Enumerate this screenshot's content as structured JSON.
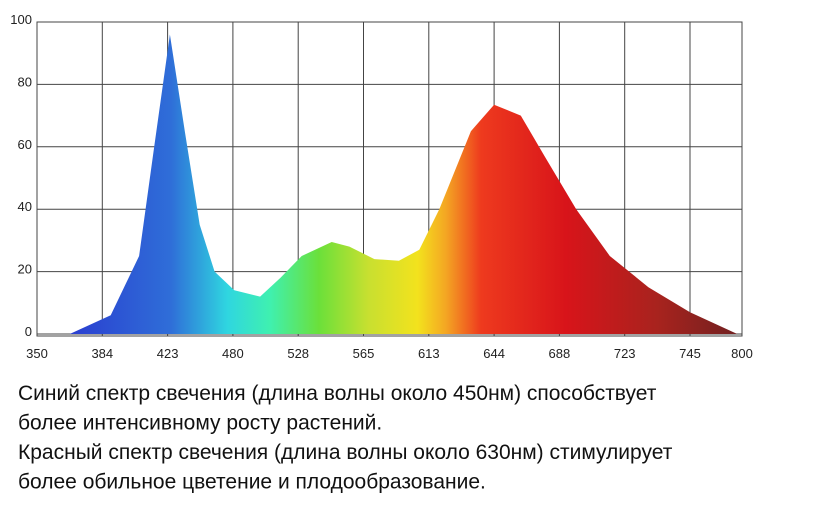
{
  "chart_data": {
    "type": "area",
    "x": [
      367,
      389,
      406,
      415,
      425,
      438,
      451,
      464,
      481,
      500,
      515,
      530,
      547,
      557,
      573,
      591,
      606,
      618,
      633,
      644,
      662,
      678,
      697,
      715,
      731,
      745,
      795
    ],
    "values": [
      0,
      6,
      25,
      60,
      96,
      65,
      35,
      20,
      14,
      12,
      18,
      25,
      29.5,
      28,
      24,
      23.5,
      27,
      40,
      65,
      73.5,
      70,
      57,
      40,
      25,
      15,
      7,
      0
    ],
    "xlim": [
      350,
      800
    ],
    "xticks": [
      350,
      384,
      423,
      480,
      528,
      565,
      613,
      644,
      688,
      723,
      745,
      800
    ],
    "ylim": [
      0,
      100
    ],
    "yticks": [
      0,
      20,
      40,
      60,
      80,
      100
    ],
    "grid": true,
    "annotations": [
      "Синий спектр свечения (длина волны около 450нм) способствует",
      "более интенсивному росту растений.",
      "Красный спектр свечения (длина волны около 630нм) стимулирует",
      "более обильное цветение и плодообразование."
    ]
  }
}
